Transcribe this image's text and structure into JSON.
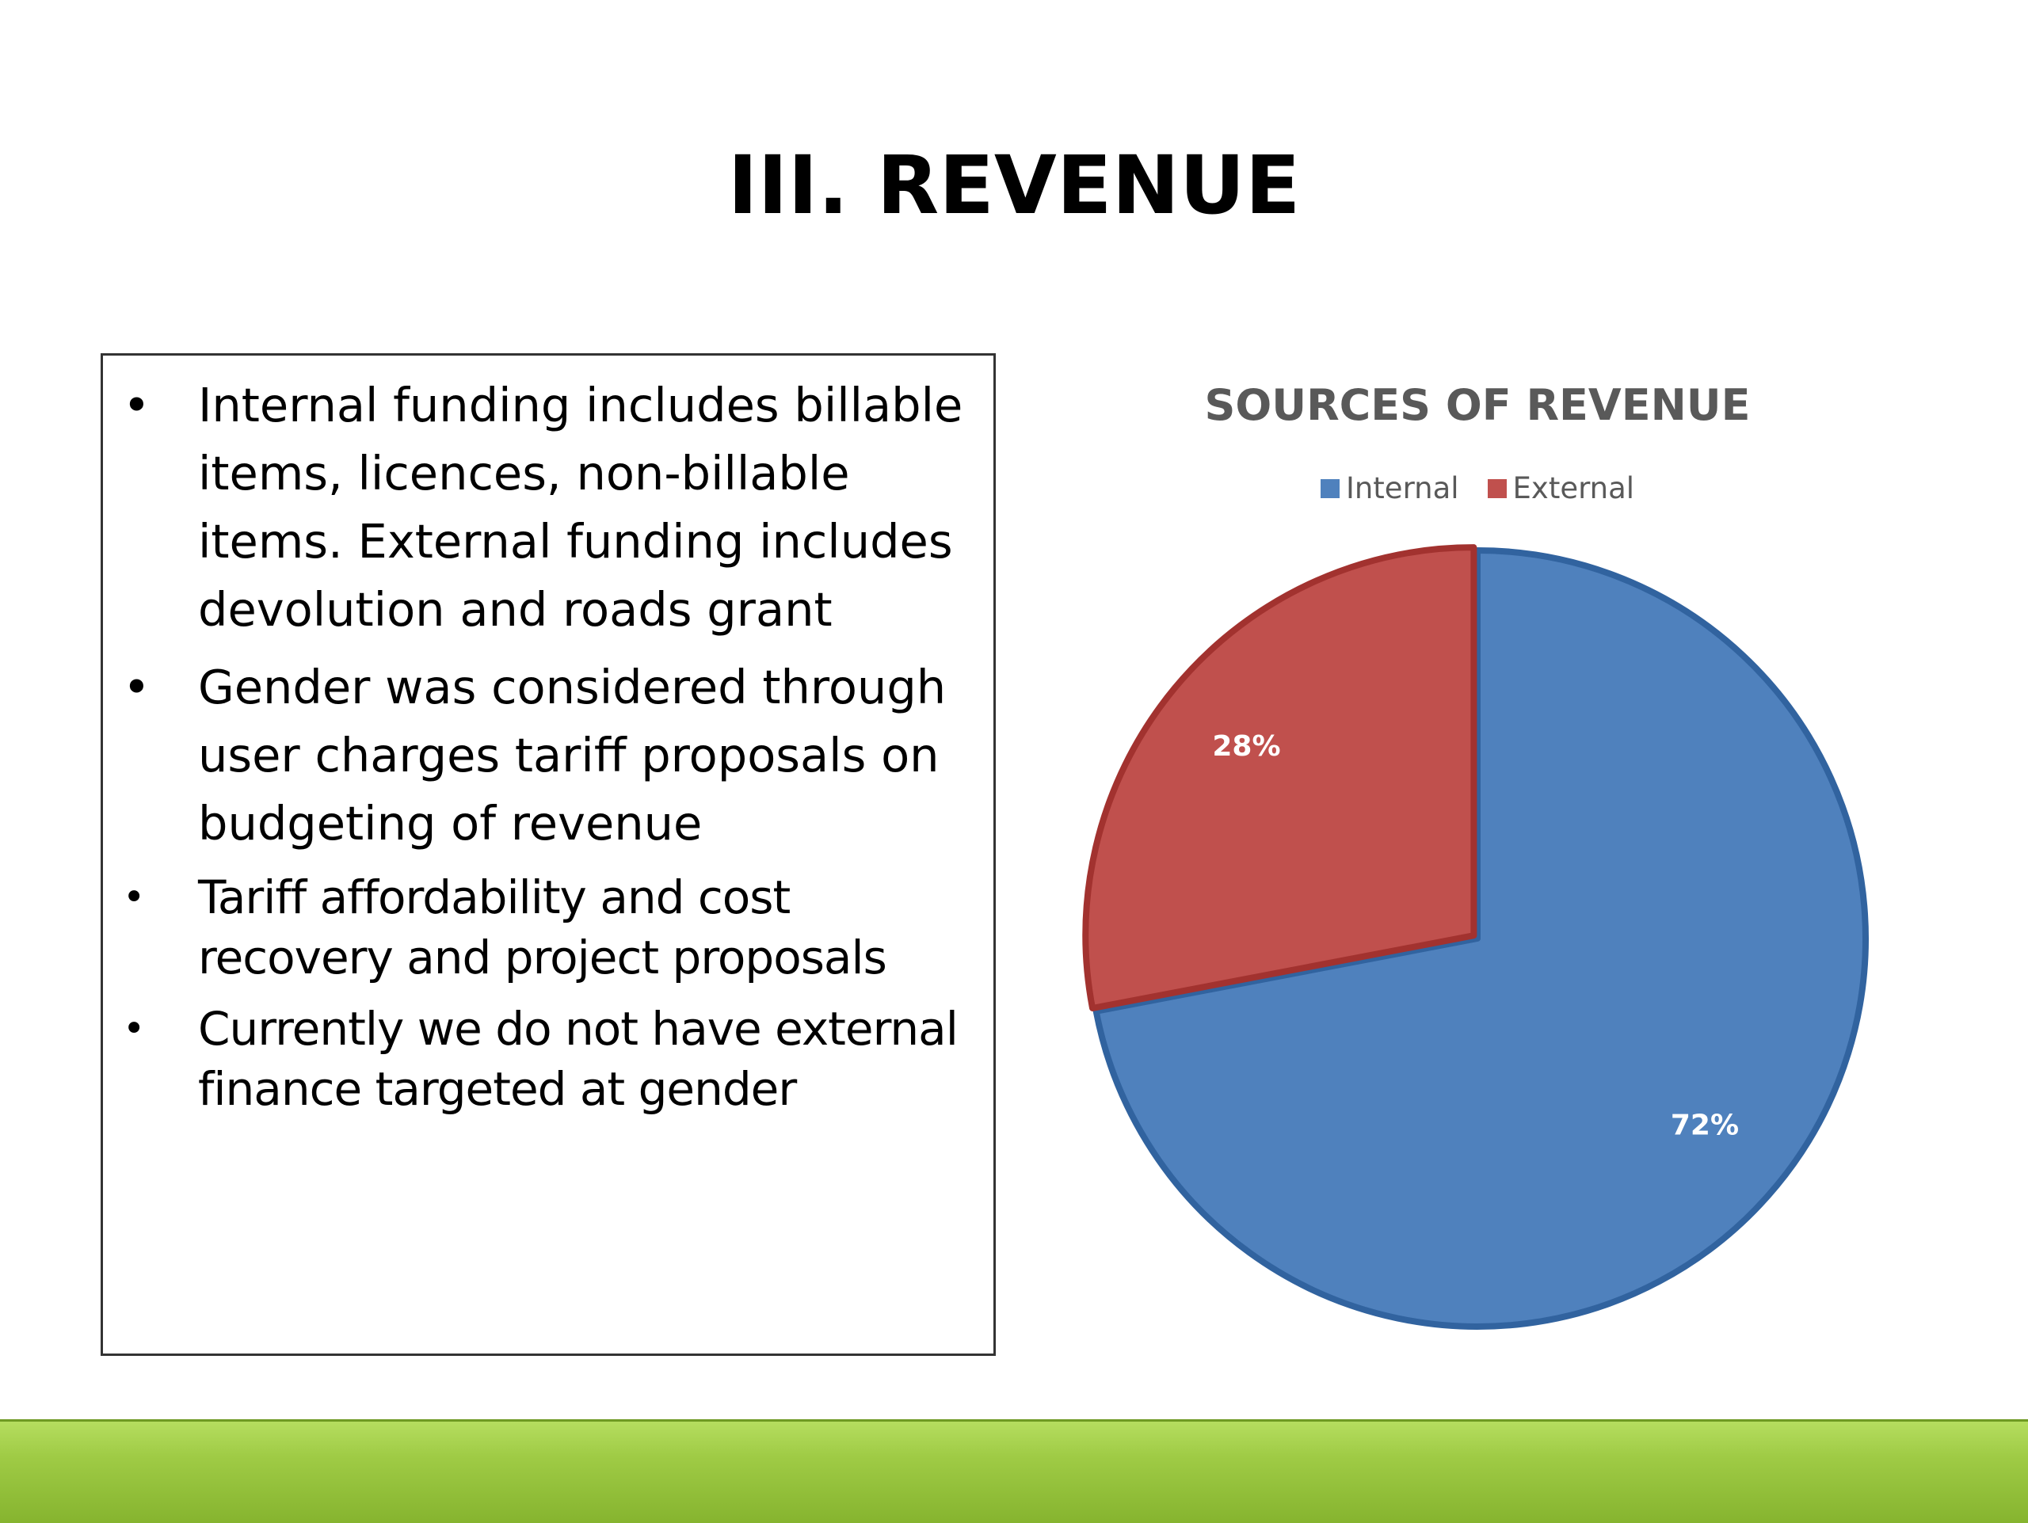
{
  "slide": {
    "title": "III. REVENUE",
    "bullets": [
      "Internal funding includes billable items, licences, non-billable items. External funding includes devolution and roads grant",
      "Gender was considered through user charges tariff proposals on budgeting of revenue",
      "Tariff affordability and cost recovery and project proposals",
      "Currently we do not have external finance targeted at gender"
    ],
    "bullet_symbol": "•"
  },
  "chart_data": {
    "type": "pie",
    "title": "SOURCES OF REVENUE",
    "categories": [
      "Internal",
      "External"
    ],
    "values": [
      72,
      28
    ],
    "labels": [
      "72%",
      "28%"
    ],
    "colors": [
      "#4f81bd",
      "#c0504d"
    ],
    "legend_position": "top"
  },
  "theme": {
    "accent_bar": "#9bc844"
  }
}
